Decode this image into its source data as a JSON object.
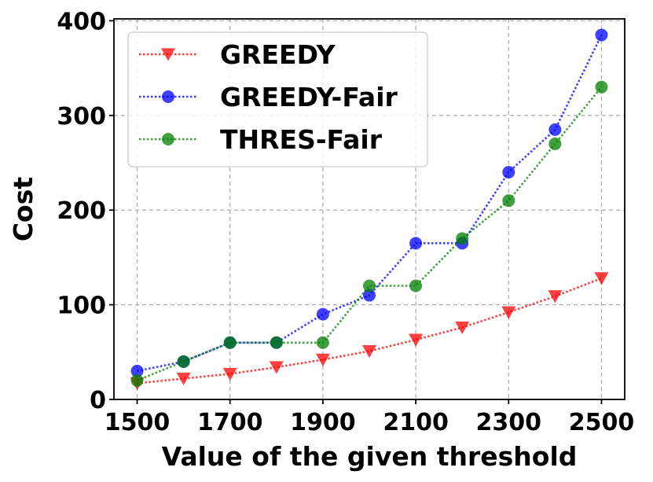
{
  "chart_data": {
    "type": "line",
    "xlabel": "Value of the given threshold",
    "ylabel": "Cost",
    "x": [
      1500,
      1600,
      1700,
      1800,
      1900,
      2000,
      2100,
      2200,
      2300,
      2400,
      2500
    ],
    "xticks": [
      1500,
      1700,
      1900,
      2100,
      2300,
      2500
    ],
    "yticks": [
      0,
      100,
      200,
      300,
      400
    ],
    "xlim": [
      1450,
      2550
    ],
    "ylim": [
      0,
      402
    ],
    "grid": true,
    "legend_position": "top-left",
    "series": [
      {
        "name": "GREEDY",
        "color": "#ff0000",
        "marker": "triangle-down",
        "values": [
          17,
          22,
          27,
          34,
          42,
          51,
          63,
          76,
          92,
          109,
          128
        ]
      },
      {
        "name": "GREEDY-Fair",
        "color": "#0000ff",
        "marker": "circle",
        "values": [
          30,
          40,
          60,
          60,
          90,
          110,
          165,
          165,
          240,
          285,
          385
        ]
      },
      {
        "name": "THRES-Fair",
        "color": "#008000",
        "marker": "circle",
        "values": [
          20,
          40,
          60,
          60,
          60,
          120,
          120,
          170,
          210,
          270,
          330
        ]
      }
    ]
  }
}
